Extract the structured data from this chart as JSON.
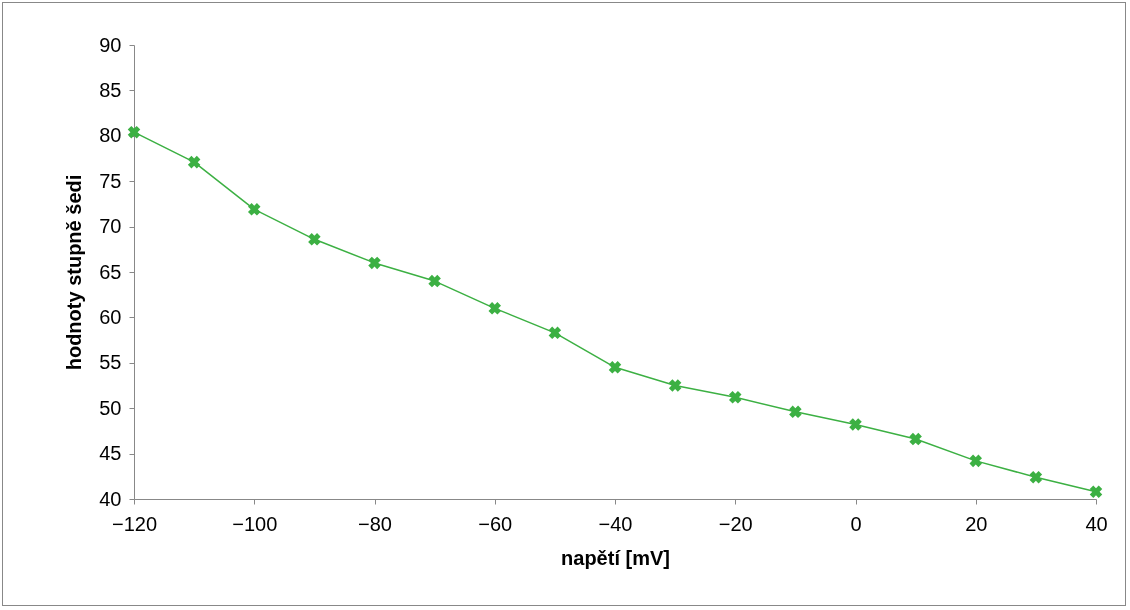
{
  "chart_data": {
    "type": "line",
    "xlabel": "napětí [mV]",
    "ylabel": "hodnoty stupně šedi",
    "x": [
      -120,
      -110,
      -100,
      -90,
      -80,
      -70,
      -60,
      -50,
      -40,
      -30,
      -20,
      -10,
      0,
      10,
      20,
      30,
      40
    ],
    "series": [
      {
        "color": "#3cb043",
        "values": [
          80.4,
          77.1,
          71.9,
          68.6,
          66.0,
          64.0,
          61.0,
          58.3,
          54.5,
          52.5,
          51.2,
          49.6,
          48.2,
          46.6,
          44.2,
          42.4,
          40.8
        ]
      }
    ],
    "xlim": [
      -120,
      40
    ],
    "xticks": [
      -120,
      -100,
      -80,
      -60,
      -40,
      -20,
      0,
      20,
      40
    ],
    "ylim": [
      40,
      90
    ],
    "yticks": [
      40,
      45,
      50,
      55,
      60,
      65,
      70,
      75,
      80,
      85,
      90
    ],
    "grid": false,
    "legend": false,
    "marker": "cross",
    "line_style": "solid"
  }
}
